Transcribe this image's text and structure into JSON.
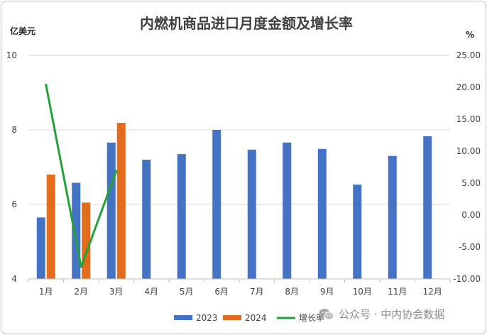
{
  "chart_data": {
    "type": "bar",
    "title": "内燃机商品进口月度金额及增长率",
    "y_left_unit": "亿美元",
    "y_right_unit": "%",
    "categories": [
      "1月",
      "2月",
      "3月",
      "4月",
      "5月",
      "6月",
      "7月",
      "8月",
      "9月",
      "10月",
      "11月",
      "12月"
    ],
    "series": [
      {
        "name": "2023",
        "kind": "bar",
        "axis": "left",
        "color": "#4472c4",
        "values": [
          5.65,
          6.58,
          7.66,
          7.2,
          7.35,
          8.0,
          7.47,
          7.66,
          7.49,
          6.53,
          7.3,
          7.83
        ]
      },
      {
        "name": "2024",
        "kind": "bar",
        "axis": "left",
        "color": "#e36c1c",
        "values": [
          6.8,
          6.05,
          8.19,
          null,
          null,
          null,
          null,
          null,
          null,
          null,
          null,
          null
        ]
      },
      {
        "name": "增长率",
        "kind": "line",
        "axis": "right",
        "color": "#22a23a",
        "values": [
          20.4,
          -8.1,
          6.9,
          null,
          null,
          null,
          null,
          null,
          null,
          null,
          null,
          null
        ]
      }
    ],
    "y_left": {
      "min": 4,
      "max": 10,
      "ticks": [
        "4",
        "6",
        "8",
        "10"
      ]
    },
    "y_right": {
      "min": -10,
      "max": 25,
      "ticks": [
        "-10.00",
        "-5.00",
        "0.00",
        "5.00",
        "10.00",
        "15.00",
        "20.00",
        "25.00"
      ]
    },
    "grid": true,
    "legend_position": "bottom"
  },
  "watermark": {
    "text": "公众号 · 中内协会数据"
  }
}
